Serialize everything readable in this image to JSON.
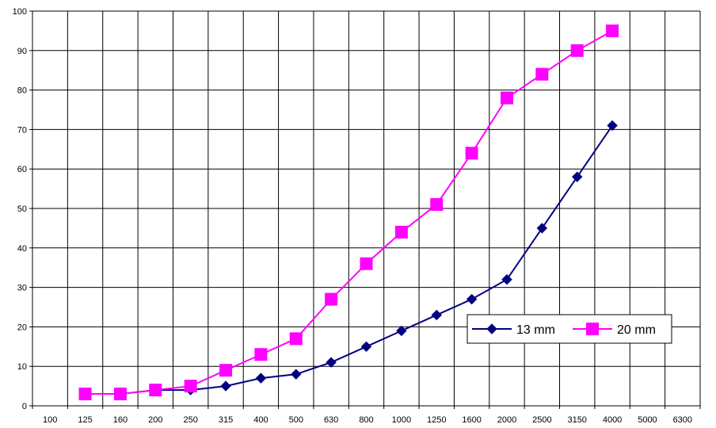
{
  "chart_data": {
    "type": "line",
    "title": "",
    "xlabel": "",
    "ylabel": "",
    "categories": [
      "100",
      "125",
      "160",
      "200",
      "250",
      "315",
      "400",
      "500",
      "630",
      "800",
      "1000",
      "1250",
      "1600",
      "2000",
      "2500",
      "3150",
      "4000",
      "5000",
      "6300"
    ],
    "ylim": [
      0,
      100
    ],
    "yticks": [
      "0",
      "10",
      "20",
      "30",
      "40",
      "50",
      "60",
      "70",
      "80",
      "90",
      "100"
    ],
    "grid": "on",
    "legend_position": "bottom-right",
    "series": [
      {
        "name": "13 mm",
        "color": "#000080",
        "marker": "diamond",
        "values": [
          null,
          3,
          3,
          4,
          4,
          5,
          7,
          8,
          11,
          15,
          19,
          23,
          27,
          32,
          45,
          58,
          71,
          null,
          null
        ]
      },
      {
        "name": "20 mm",
        "color": "#FF00FF",
        "marker": "square",
        "values": [
          null,
          3,
          3,
          4,
          5,
          9,
          13,
          17,
          27,
          36,
          44,
          51,
          64,
          78,
          84,
          90,
          95,
          null,
          null
        ]
      }
    ]
  }
}
